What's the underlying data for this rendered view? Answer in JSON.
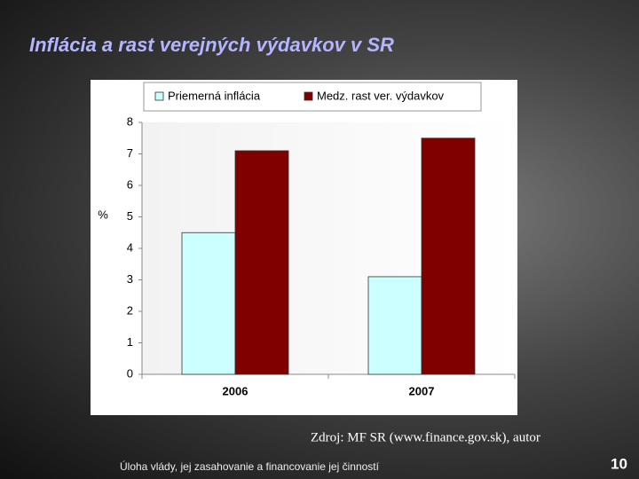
{
  "slide": {
    "title": "Inflácia a rast verejných výdavkov v SR",
    "source": "Zdroj: MF SR (www.finance.gov.sk), autor",
    "footer": "Úloha vlády, jej zasahovanie a financovanie jej činností",
    "page_number": "10"
  },
  "chart_data": {
    "type": "bar",
    "y_label": "%",
    "categories": [
      "2006",
      "2007"
    ],
    "series": [
      {
        "name": "Priemerná inflácia",
        "color": "#ccffff",
        "values": [
          4.5,
          3.1
        ]
      },
      {
        "name": "Medz. rast ver. výdavkov",
        "color": "#800000",
        "values": [
          7.1,
          7.5
        ]
      }
    ],
    "ylim": [
      0,
      8
    ],
    "yticks": [
      0,
      1,
      2,
      3,
      4,
      5,
      6,
      7,
      8
    ],
    "legend": "top"
  }
}
